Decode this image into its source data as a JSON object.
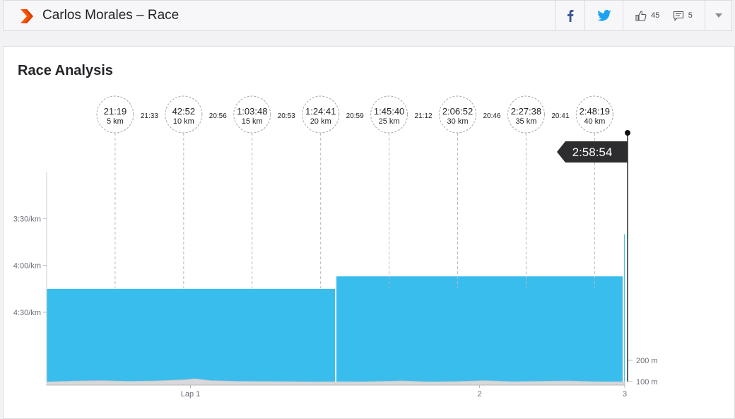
{
  "header": {
    "title": "Carlos Morales – Race",
    "kudos_count": "45",
    "comment_count": "5"
  },
  "colors": {
    "brand": "#fc5200",
    "facebook": "#3b5998",
    "twitter": "#1da1f2",
    "pace_fill": "#38bdec",
    "elevation_fill": "#d9d9dc",
    "finish_flag": "#2d2d30"
  },
  "icons": {
    "brand": "strava-chevron-icon",
    "facebook": "facebook-icon",
    "twitter": "twitter-icon",
    "kudos": "thumbs-up-icon",
    "comments": "comment-icon",
    "more": "caret-down-icon"
  },
  "panel": {
    "title": "Race Analysis"
  },
  "chart_data": {
    "type": "area",
    "total_distance_km": 42.2,
    "finish_time": "2:58:54",
    "splits": [
      {
        "time": "21:19",
        "label": "5 km",
        "km": 5
      },
      {
        "time": "42:52",
        "label": "10 km",
        "km": 10
      },
      {
        "time": "1:03:48",
        "label": "15 km",
        "km": 15
      },
      {
        "time": "1:24:41",
        "label": "20 km",
        "km": 20
      },
      {
        "time": "1:45:40",
        "label": "25 km",
        "km": 25
      },
      {
        "time": "2:06:52",
        "label": "30 km",
        "km": 30
      },
      {
        "time": "2:27:38",
        "label": "35 km",
        "km": 35
      },
      {
        "time": "2:48:19",
        "label": "40 km",
        "km": 40
      }
    ],
    "segment_times": [
      "21:33",
      "20:56",
      "20:53",
      "20:59",
      "21:12",
      "20:46",
      "20:41"
    ],
    "laps": [
      {
        "start_km": 0,
        "end_km": 21.1,
        "pace_s_per_km": 255
      },
      {
        "start_km": 21.1,
        "end_km": 42.1,
        "pace_s_per_km": 247
      },
      {
        "start_km": 42.1,
        "end_km": 42.2,
        "pace_s_per_km": 220
      }
    ],
    "y_pace_ticks": [
      {
        "label": "3:30/km",
        "s": 210
      },
      {
        "label": "4:00/km",
        "s": 240
      },
      {
        "label": "4:30/km",
        "s": 270
      }
    ],
    "y_pace_range_s": [
      180,
      330
    ],
    "y_elev_ticks": [
      {
        "label": "200 m",
        "m": 200
      },
      {
        "label": "100 m",
        "m": 100
      }
    ],
    "x_ticks": [
      {
        "label": "Lap 1",
        "km": 10.5
      },
      {
        "label": "2",
        "km": 31.6
      },
      {
        "label": "3",
        "km": 42.2
      }
    ],
    "elevation_profile_m": [
      [
        0,
        98
      ],
      [
        2,
        102
      ],
      [
        4,
        104
      ],
      [
        6,
        101
      ],
      [
        8,
        103
      ],
      [
        10,
        108
      ],
      [
        10.8,
        113
      ],
      [
        12,
        104
      ],
      [
        14,
        101
      ],
      [
        16,
        100
      ],
      [
        18,
        99
      ],
      [
        20,
        98
      ],
      [
        22,
        97
      ],
      [
        24,
        100
      ],
      [
        26,
        103
      ],
      [
        28,
        98
      ],
      [
        30,
        100
      ],
      [
        32,
        104
      ],
      [
        34,
        99
      ],
      [
        36,
        101
      ],
      [
        38,
        103
      ],
      [
        40,
        99
      ],
      [
        42.2,
        97
      ]
    ]
  }
}
